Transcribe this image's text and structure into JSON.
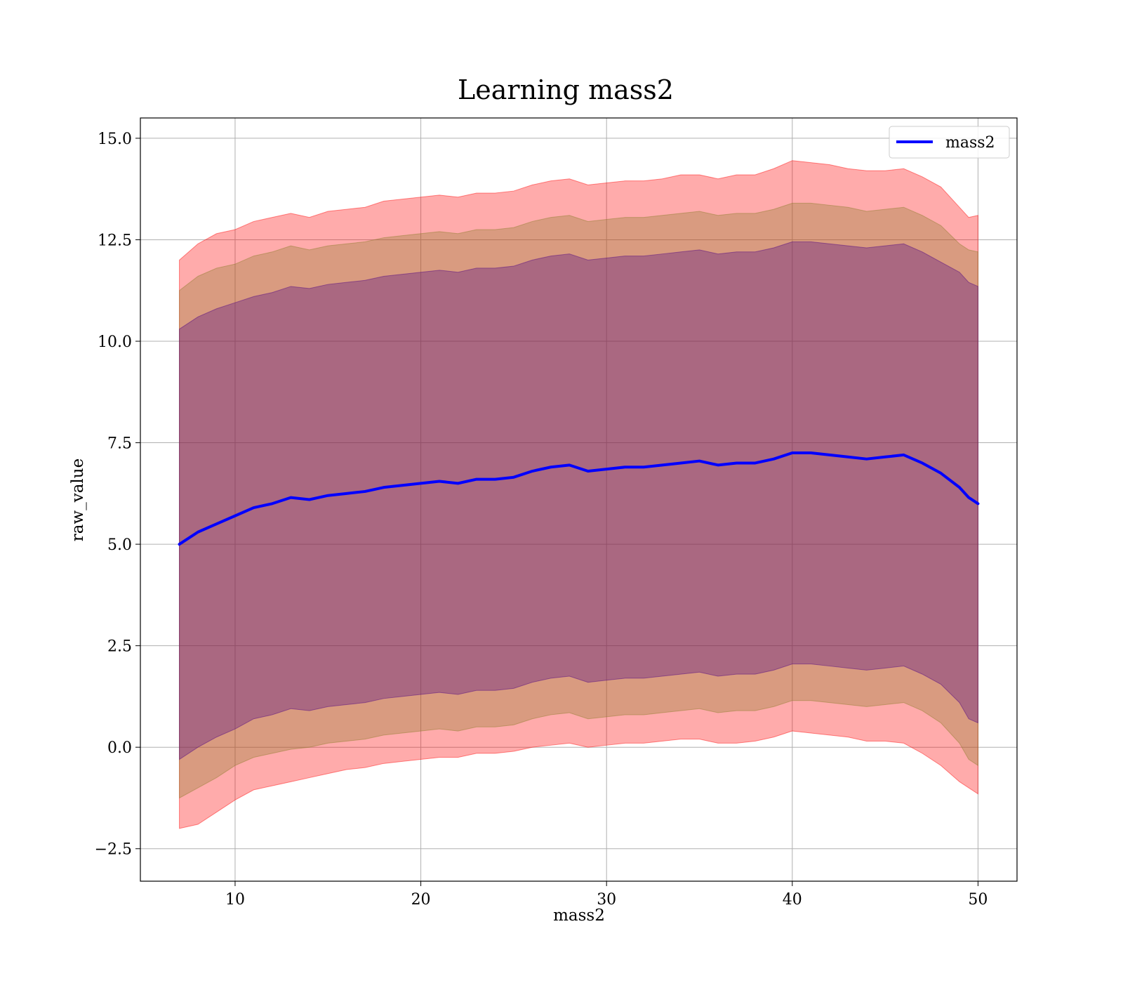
{
  "chart_data": {
    "type": "line",
    "title": "Learning mass2",
    "xlabel": "mass2",
    "ylabel": "raw_value",
    "xlim": [
      4.9,
      52.1
    ],
    "ylim": [
      -3.3,
      15.5
    ],
    "xticks": [
      10,
      20,
      30,
      40,
      50
    ],
    "yticks": [
      -2.5,
      0.0,
      2.5,
      5.0,
      7.5,
      10.0,
      12.5,
      15.0
    ],
    "xtick_labels": [
      "10",
      "20",
      "30",
      "40",
      "50"
    ],
    "ytick_labels": [
      "−2.5",
      "0.0",
      "2.5",
      "5.0",
      "7.5",
      "10.0",
      "12.5",
      "15.0"
    ],
    "grid": true,
    "legend": {
      "position": "top-right",
      "entries": [
        "mass2"
      ]
    },
    "series": [
      {
        "name": "mass2",
        "color": "#0000ff",
        "x": [
          7,
          8,
          9,
          10,
          11,
          12,
          13,
          14,
          15,
          16,
          17,
          18,
          19,
          20,
          21,
          22,
          23,
          24,
          25,
          26,
          27,
          28,
          29,
          30,
          31,
          32,
          33,
          34,
          35,
          36,
          37,
          38,
          39,
          40,
          41,
          42,
          43,
          44,
          45,
          46,
          47,
          48,
          49,
          49.5,
          50
        ],
        "y": [
          5.0,
          5.3,
          5.5,
          5.7,
          5.9,
          6.0,
          6.15,
          6.1,
          6.2,
          6.25,
          6.3,
          6.4,
          6.45,
          6.5,
          6.55,
          6.5,
          6.6,
          6.6,
          6.65,
          6.8,
          6.9,
          6.95,
          6.8,
          6.85,
          6.9,
          6.9,
          6.95,
          7.0,
          7.05,
          6.95,
          7.0,
          7.0,
          7.1,
          7.25,
          7.25,
          7.2,
          7.15,
          7.1,
          7.15,
          7.2,
          7.0,
          6.75,
          6.4,
          6.15,
          6.0
        ]
      }
    ],
    "bands": [
      {
        "color": "#ff0000",
        "opacity": 0.33,
        "lower": [
          -2.0,
          -1.9,
          -1.6,
          -1.3,
          -1.05,
          -0.95,
          -0.85,
          -0.75,
          -0.65,
          -0.55,
          -0.5,
          -0.4,
          -0.35,
          -0.3,
          -0.25,
          -0.25,
          -0.15,
          -0.15,
          -0.1,
          0.0,
          0.05,
          0.1,
          0.0,
          0.05,
          0.1,
          0.1,
          0.15,
          0.2,
          0.2,
          0.1,
          0.1,
          0.15,
          0.25,
          0.4,
          0.35,
          0.3,
          0.25,
          0.15,
          0.15,
          0.1,
          -0.15,
          -0.45,
          -0.85,
          -1.0,
          -1.15
        ],
        "upper": [
          12.0,
          12.4,
          12.65,
          12.75,
          12.95,
          13.05,
          13.15,
          13.05,
          13.2,
          13.25,
          13.3,
          13.45,
          13.5,
          13.55,
          13.6,
          13.55,
          13.65,
          13.65,
          13.7,
          13.85,
          13.95,
          14.0,
          13.85,
          13.9,
          13.95,
          13.95,
          14.0,
          14.1,
          14.1,
          14.0,
          14.1,
          14.1,
          14.25,
          14.45,
          14.4,
          14.35,
          14.25,
          14.2,
          14.2,
          14.25,
          14.05,
          13.8,
          13.3,
          13.05,
          13.1
        ]
      },
      {
        "color": "#8b7d2b",
        "opacity": 0.33,
        "lower": [
          -1.25,
          -1.0,
          -0.75,
          -0.45,
          -0.25,
          -0.15,
          -0.05,
          0.0,
          0.1,
          0.15,
          0.2,
          0.3,
          0.35,
          0.4,
          0.45,
          0.4,
          0.5,
          0.5,
          0.55,
          0.7,
          0.8,
          0.85,
          0.7,
          0.75,
          0.8,
          0.8,
          0.85,
          0.9,
          0.95,
          0.85,
          0.9,
          0.9,
          1.0,
          1.15,
          1.15,
          1.1,
          1.05,
          1.0,
          1.05,
          1.1,
          0.9,
          0.6,
          0.1,
          -0.3,
          -0.45
        ],
        "upper": [
          11.25,
          11.6,
          11.8,
          11.9,
          12.1,
          12.2,
          12.35,
          12.25,
          12.35,
          12.4,
          12.45,
          12.55,
          12.6,
          12.65,
          12.7,
          12.65,
          12.75,
          12.75,
          12.8,
          12.95,
          13.05,
          13.1,
          12.95,
          13.0,
          13.05,
          13.05,
          13.1,
          13.15,
          13.2,
          13.1,
          13.15,
          13.15,
          13.25,
          13.4,
          13.4,
          13.35,
          13.3,
          13.2,
          13.25,
          13.3,
          13.1,
          12.85,
          12.4,
          12.25,
          12.2
        ]
      },
      {
        "color": "#4b0082",
        "opacity": 0.33,
        "lower": [
          -0.3,
          0.0,
          0.25,
          0.45,
          0.7,
          0.8,
          0.95,
          0.9,
          1.0,
          1.05,
          1.1,
          1.2,
          1.25,
          1.3,
          1.35,
          1.3,
          1.4,
          1.4,
          1.45,
          1.6,
          1.7,
          1.75,
          1.6,
          1.65,
          1.7,
          1.7,
          1.75,
          1.8,
          1.85,
          1.75,
          1.8,
          1.8,
          1.9,
          2.05,
          2.05,
          2.0,
          1.95,
          1.9,
          1.95,
          2.0,
          1.8,
          1.55,
          1.1,
          0.7,
          0.6
        ],
        "upper": [
          10.3,
          10.6,
          10.8,
          10.95,
          11.1,
          11.2,
          11.35,
          11.3,
          11.4,
          11.45,
          11.5,
          11.6,
          11.65,
          11.7,
          11.75,
          11.7,
          11.8,
          11.8,
          11.85,
          12.0,
          12.1,
          12.15,
          12.0,
          12.05,
          12.1,
          12.1,
          12.15,
          12.2,
          12.25,
          12.15,
          12.2,
          12.2,
          12.3,
          12.45,
          12.45,
          12.4,
          12.35,
          12.3,
          12.35,
          12.4,
          12.2,
          11.95,
          11.7,
          11.45,
          11.35
        ]
      }
    ]
  }
}
